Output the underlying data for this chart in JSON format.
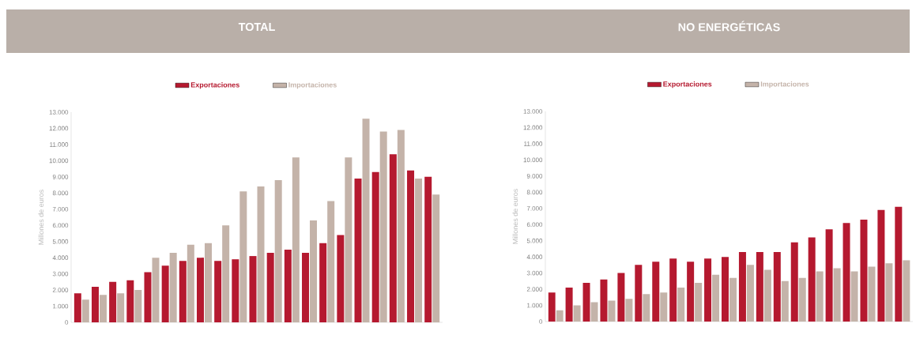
{
  "chart_data": [
    {
      "type": "bar",
      "title": "TOTAL",
      "ylabel": "Millones de euros",
      "legend": "top",
      "categories": [
        null,
        null,
        null,
        null,
        null,
        null,
        null,
        null,
        null,
        null,
        null,
        null,
        null,
        null,
        null,
        null,
        null,
        null,
        null,
        null,
        null
      ],
      "series": [
        {
          "name": "Exportaciones",
          "color": "#b5192f",
          "values": [
            1800,
            2200,
            2500,
            2600,
            3100,
            3500,
            3800,
            4000,
            3800,
            3900,
            4100,
            4300,
            4500,
            4300,
            4900,
            5400,
            8900,
            9300,
            10400,
            9400,
            9000
          ]
        },
        {
          "name": "Importaciones",
          "color": "#c4b3a9",
          "values": [
            1400,
            1700,
            1800,
            2000,
            4000,
            4300,
            4800,
            4900,
            6000,
            8100,
            8400,
            8800,
            10200,
            6300,
            7500,
            10200,
            12600,
            11800,
            11900,
            8900,
            7900
          ]
        }
      ],
      "ylim": [
        0,
        13000
      ],
      "yticks": [
        0,
        {
          "value": 1000,
          "label": "1.000"
        },
        {
          "value": 2000,
          "label": "2.000"
        },
        {
          "value": 3000,
          "label": "3.000"
        },
        {
          "value": 4000,
          "label": "4.000"
        },
        {
          "value": 5000,
          "label": "5.000"
        },
        {
          "value": 6000,
          "label": "6.000"
        },
        {
          "value": 7000,
          "label": "7.000"
        },
        {
          "value": 8000,
          "label": "8.000"
        },
        {
          "value": 9000,
          "label": "9.000"
        },
        {
          "value": 10000,
          "label": "10.000"
        },
        {
          "value": 11000,
          "label": "11.000"
        },
        {
          "value": 12000,
          "label": "12.000"
        },
        {
          "value": 13000,
          "label": "13.000"
        }
      ]
    },
    {
      "type": "bar",
      "title": "NO ENERGÉTICAS",
      "ylabel": "Millones de euros",
      "legend": "top",
      "categories": [
        null,
        null,
        null,
        null,
        null,
        null,
        null,
        null,
        null,
        null,
        null,
        null,
        null,
        null,
        null,
        null,
        null,
        null,
        null,
        null,
        null
      ],
      "series": [
        {
          "name": "Exportaciones",
          "color": "#b5192f",
          "values": [
            1800,
            2100,
            2400,
            2600,
            3000,
            3500,
            3700,
            3900,
            3700,
            3900,
            4000,
            4300,
            4300,
            4300,
            4900,
            5200,
            5700,
            6100,
            6300,
            6900,
            7100
          ]
        },
        {
          "name": "Importaciones",
          "color": "#c4b3a9",
          "values": [
            700,
            1000,
            1200,
            1300,
            1400,
            1700,
            1800,
            2100,
            2400,
            2900,
            2700,
            3500,
            3200,
            2500,
            2700,
            3100,
            3300,
            3100,
            3400,
            3600,
            3800
          ]
        }
      ],
      "ylim": [
        0,
        13000
      ],
      "yticks": [
        0,
        {
          "value": 1000,
          "label": "1.000"
        },
        {
          "value": 2000,
          "label": "2.000"
        },
        {
          "value": 3000,
          "label": "3.000"
        },
        {
          "value": 4000,
          "label": "4.000"
        },
        {
          "value": 5000,
          "label": "5.000"
        },
        {
          "value": 6000,
          "label": "6.000"
        },
        {
          "value": 7000,
          "label": "7.000"
        },
        {
          "value": 8000,
          "label": "8.000"
        },
        {
          "value": 9000,
          "label": "9.000"
        },
        {
          "value": 10000,
          "label": "10.000"
        },
        {
          "value": 11000,
          "label": "11.000"
        },
        {
          "value": 12000,
          "label": "12.000"
        },
        {
          "value": 13000,
          "label": "13.000"
        }
      ]
    }
  ]
}
